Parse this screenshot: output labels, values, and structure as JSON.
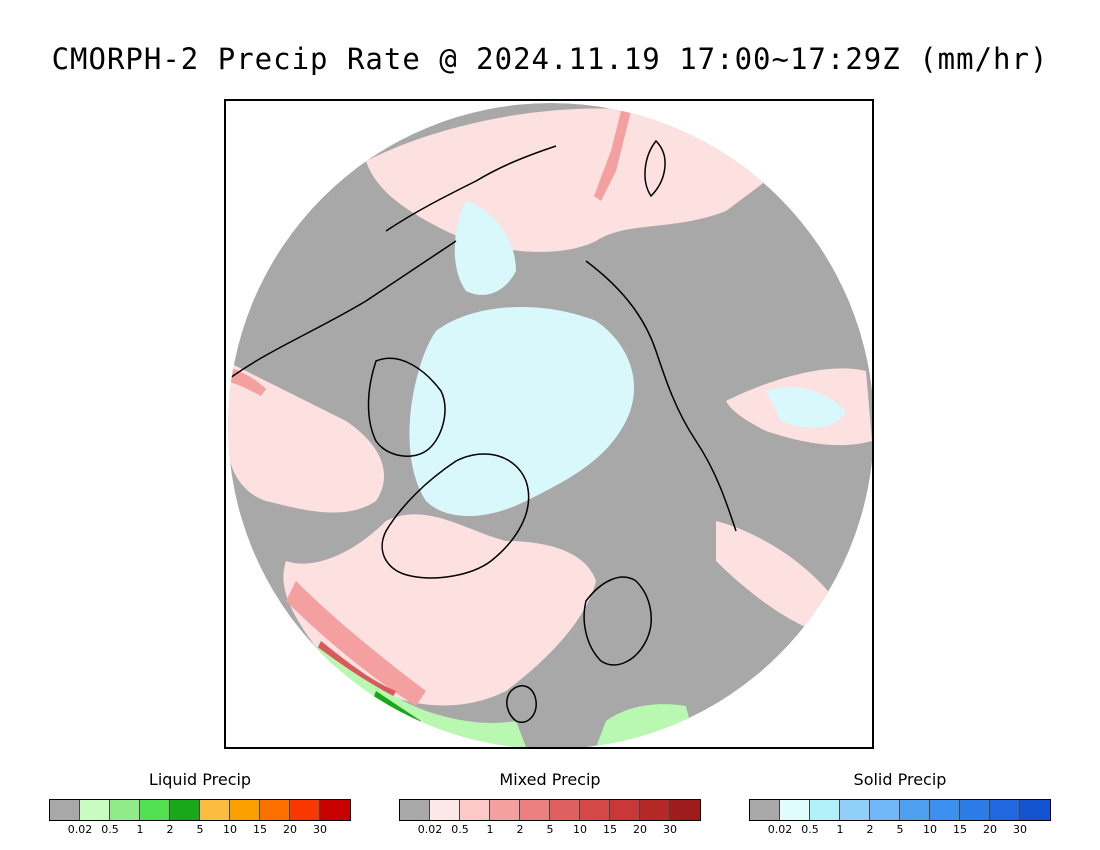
{
  "title": "CMORPH-2 Precip Rate @ 2024.11.19 17:00~17:29Z (mm/hr)",
  "map": {
    "projection": "north-polar-stereographic",
    "colors": {
      "no_precip": "#a8a8a8",
      "mixed_light": "#fde0e0",
      "mixed_mod": "#f4a0a0",
      "mixed_heavy": "#d85a5a",
      "solid_light": "#d8f8fc",
      "liquid_light": "#b8f8b0",
      "liquid_mod": "#50e050",
      "liquid_heavy": "#18a818"
    }
  },
  "legends": [
    {
      "title": "Liquid Precip",
      "colors": [
        "#a8a8a8",
        "#c8fcc0",
        "#90ec88",
        "#50e050",
        "#18a818",
        "#fcbc40",
        "#fca000",
        "#fc7000",
        "#f83800",
        "#c80000"
      ],
      "labels": [
        "0.02",
        "0.5",
        "1",
        "2",
        "5",
        "10",
        "15",
        "20",
        "30"
      ]
    },
    {
      "title": "Mixed Precip",
      "colors": [
        "#a8a8a8",
        "#fde8e8",
        "#fcc8c8",
        "#f4a0a0",
        "#ec8080",
        "#e06060",
        "#d44848",
        "#c83838",
        "#b42828",
        "#a01c1c"
      ],
      "labels": [
        "0.02",
        "0.5",
        "1",
        "2",
        "5",
        "10",
        "15",
        "20",
        "30"
      ]
    },
    {
      "title": "Solid Precip",
      "colors": [
        "#a8a8a8",
        "#e0fcfc",
        "#b0f0f8",
        "#90d0f8",
        "#70b8f8",
        "#50a0f0",
        "#3c90f0",
        "#2c7ce8",
        "#2068e0",
        "#1454d0"
      ],
      "labels": [
        "0.02",
        "0.5",
        "1",
        "2",
        "5",
        "10",
        "15",
        "20",
        "30"
      ]
    }
  ]
}
